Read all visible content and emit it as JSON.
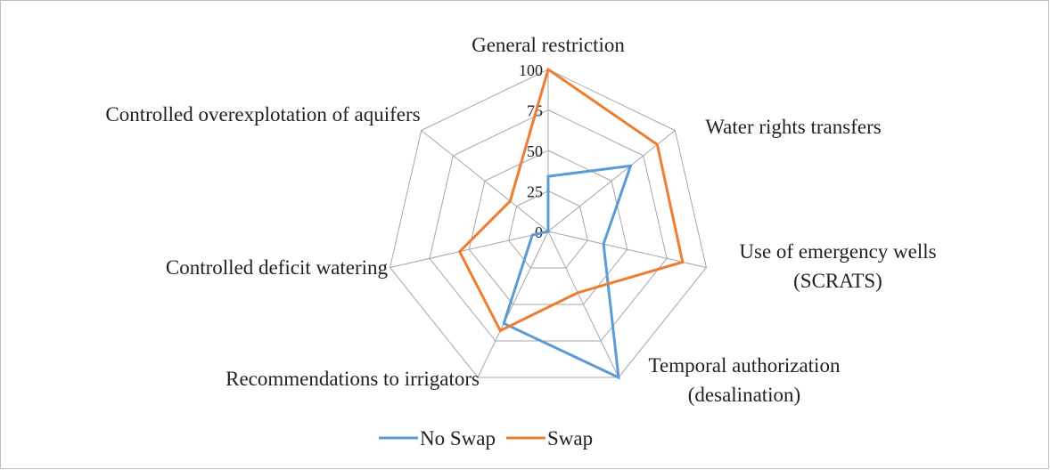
{
  "chart_data": {
    "type": "radar",
    "categories": [
      "General restriction",
      "Water rights transfers",
      "Use of emergency wells (SCRATS)",
      "Temporal authorization (desalination)",
      "Recommendations to irrigators",
      "Controlled deficit watering",
      "Controlled overexplotation of aquifers"
    ],
    "series": [
      {
        "name": "No Swap",
        "color": "#5b9bd5",
        "values": [
          34,
          65,
          35,
          100,
          63,
          10,
          0
        ]
      },
      {
        "name": "Swap",
        "color": "#ed7d31",
        "values": [
          100,
          86,
          85,
          42,
          68,
          56,
          30
        ]
      }
    ],
    "ylim": [
      0,
      100
    ],
    "yticks": [
      0,
      25,
      50,
      75,
      100
    ],
    "grid": true,
    "legend": "bottom"
  }
}
